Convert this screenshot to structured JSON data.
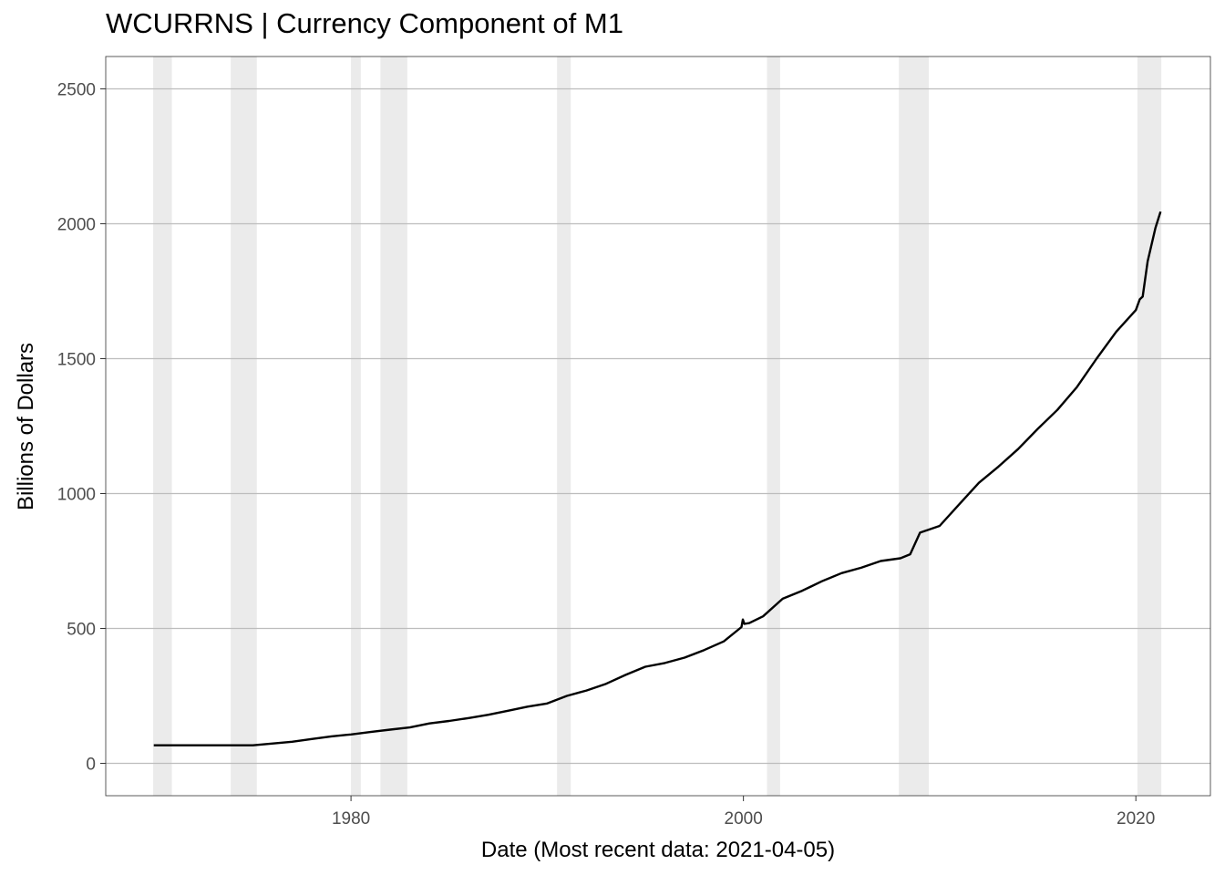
{
  "chart_data": {
    "type": "line",
    "title": "WCURRNS | Currency Component of M1",
    "xlabel": "Date (Most recent data: 2021-04-05)",
    "ylabel": "Billions of Dollars",
    "xlim": [
      1967.5,
      2023.8
    ],
    "ylim": [
      -120,
      2620
    ],
    "x_ticks": [
      1980,
      2000,
      2020
    ],
    "y_ticks": [
      0,
      500,
      1000,
      1500,
      2000,
      2500
    ],
    "grid": "horizontal",
    "legend": "none",
    "colors": {
      "line": "#000000",
      "recession": "#ebebeb",
      "grid": "#bdbdbd",
      "axis": "#4d4d4d"
    },
    "recessions": [
      {
        "start": 1969.92,
        "end": 1970.87
      },
      {
        "start": 1973.87,
        "end": 1975.2
      },
      {
        "start": 1980.0,
        "end": 1980.5
      },
      {
        "start": 1981.5,
        "end": 1982.87
      },
      {
        "start": 1990.5,
        "end": 1991.2
      },
      {
        "start": 2001.2,
        "end": 2001.87
      },
      {
        "start": 2007.92,
        "end": 2009.45
      },
      {
        "start": 2020.08,
        "end": 2021.3
      }
    ],
    "series": [
      {
        "x": [
          1969.95,
          1972.0,
          1975.0,
          1977.0,
          1978.0,
          1979.0,
          1980.0,
          1981.0,
          1982.0,
          1983.0,
          1984.0,
          1985.0,
          1986.0,
          1987.0,
          1988.0,
          1989.0,
          1990.0,
          1991.0,
          1992.0,
          1993.0,
          1994.0,
          1995.0,
          1996.0,
          1997.0,
          1998.0,
          1999.0,
          1999.9,
          1999.97,
          2000.05,
          2000.3,
          2001.0,
          2002.0,
          2003.0,
          2004.0,
          2005.0,
          2006.0,
          2007.0,
          2008.0,
          2008.5,
          2009.0,
          2010.0,
          2011.0,
          2012.0,
          2013.0,
          2014.0,
          2015.0,
          2016.0,
          2017.0,
          2018.0,
          2019.0,
          2020.0,
          2020.2,
          2020.35,
          2020.6,
          2021.0,
          2021.26
        ],
        "y": [
          67,
          67,
          67,
          80,
          90,
          100,
          107,
          116,
          125,
          133,
          148,
          157,
          168,
          180,
          195,
          210,
          222,
          250,
          270,
          295,
          328,
          358,
          372,
          392,
          420,
          452,
          505,
          533,
          517,
          520,
          545,
          610,
          640,
          675,
          705,
          725,
          750,
          760,
          775,
          855,
          880,
          960,
          1040,
          1100,
          1165,
          1240,
          1310,
          1395,
          1500,
          1600,
          1680,
          1720,
          1730,
          1860,
          1985,
          2045
        ]
      }
    ]
  }
}
